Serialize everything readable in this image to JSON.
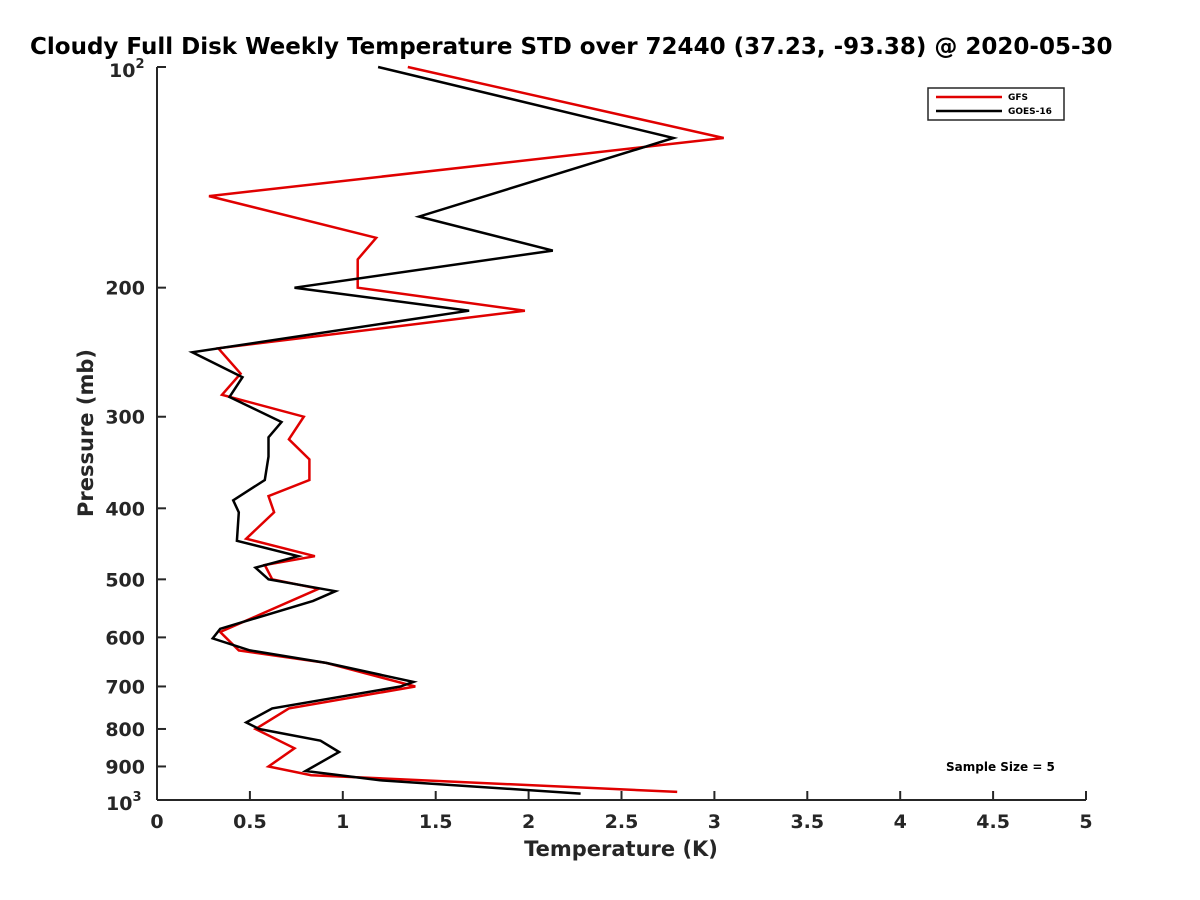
{
  "chart_data": {
    "type": "line",
    "title": "Cloudy Full Disk Weekly Temperature STD over 72440 (37.23, -93.38) @ 2020-05-30",
    "xlabel": "Temperature (K)",
    "ylabel": "Pressure (mb)",
    "xlim": [
      0,
      5
    ],
    "ylim": [
      100,
      1000
    ],
    "y_scale": "log",
    "y_reversed": true,
    "grid": false,
    "legend_position": "top-right",
    "x_ticks": [
      0,
      0.5,
      1,
      1.5,
      2,
      2.5,
      3,
      3.5,
      4,
      4.5,
      5
    ],
    "x_tick_labels": [
      "0",
      "0.5",
      "1",
      "1.5",
      "2",
      "2.5",
      "3",
      "3.5",
      "4",
      "4.5",
      "5"
    ],
    "y_ticks": [
      200,
      300,
      400,
      500,
      600,
      700,
      800,
      900
    ],
    "y_tick_labels": [
      "200",
      "300",
      "400",
      "500",
      "600",
      "700",
      "800",
      "900"
    ],
    "y_tick_top": {
      "base": "10",
      "exp": "2"
    },
    "y_tick_bottom": {
      "base": "10",
      "exp": "3"
    },
    "annotation": "Sample Size = 5",
    "series": [
      {
        "name": "GFS",
        "color": "#e00000",
        "points": [
          [
            1.35,
            100
          ],
          [
            3.05,
            125
          ],
          [
            0.28,
            150
          ],
          [
            1.18,
            171
          ],
          [
            1.08,
            183
          ],
          [
            1.08,
            200
          ],
          [
            1.98,
            215
          ],
          [
            0.33,
            242
          ],
          [
            0.45,
            262
          ],
          [
            0.35,
            280
          ],
          [
            0.79,
            300
          ],
          [
            0.71,
            322
          ],
          [
            0.82,
            343
          ],
          [
            0.82,
            366
          ],
          [
            0.6,
            385
          ],
          [
            0.63,
            405
          ],
          [
            0.48,
            440
          ],
          [
            0.85,
            465
          ],
          [
            0.58,
            478
          ],
          [
            0.62,
            500
          ],
          [
            0.87,
            515
          ],
          [
            0.55,
            559
          ],
          [
            0.34,
            590
          ],
          [
            0.44,
            625
          ],
          [
            0.91,
            650
          ],
          [
            1.39,
            700
          ],
          [
            0.71,
            750
          ],
          [
            0.53,
            800
          ],
          [
            0.74,
            850
          ],
          [
            0.6,
            900
          ],
          [
            0.83,
            925
          ],
          [
            2.8,
            975
          ]
        ]
      },
      {
        "name": "GOES-16",
        "color": "#000000",
        "points": [
          [
            1.19,
            100
          ],
          [
            2.78,
            125
          ],
          [
            1.41,
            160
          ],
          [
            2.13,
            178
          ],
          [
            0.74,
            200
          ],
          [
            1.68,
            215
          ],
          [
            0.19,
            245
          ],
          [
            0.46,
            265
          ],
          [
            0.39,
            282
          ],
          [
            0.67,
            305
          ],
          [
            0.6,
            320
          ],
          [
            0.6,
            340
          ],
          [
            0.58,
            366
          ],
          [
            0.41,
            390
          ],
          [
            0.44,
            405
          ],
          [
            0.43,
            443
          ],
          [
            0.76,
            465
          ],
          [
            0.53,
            482
          ],
          [
            0.6,
            500
          ],
          [
            0.96,
            519
          ],
          [
            0.84,
            535
          ],
          [
            0.34,
            584
          ],
          [
            0.3,
            602
          ],
          [
            0.5,
            625
          ],
          [
            0.91,
            650
          ],
          [
            1.38,
            690
          ],
          [
            1.31,
            700
          ],
          [
            0.62,
            750
          ],
          [
            0.48,
            784
          ],
          [
            0.55,
            800
          ],
          [
            0.88,
            830
          ],
          [
            0.98,
            860
          ],
          [
            0.8,
            913
          ],
          [
            1.2,
            940
          ],
          [
            2.28,
            980
          ]
        ]
      }
    ]
  }
}
